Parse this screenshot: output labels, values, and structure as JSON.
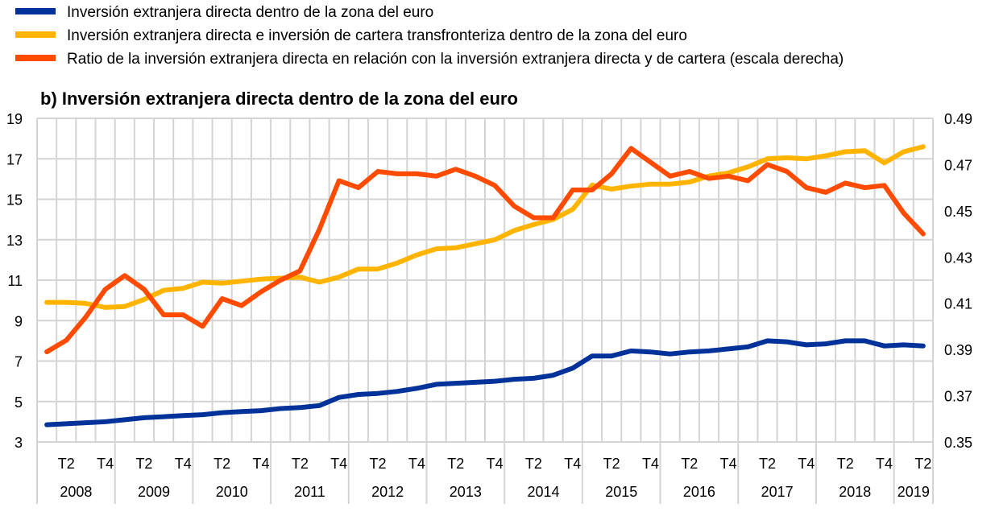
{
  "chart_data": {
    "type": "line",
    "title": "b) Inversión extranjera directa dentro de la zona del euro",
    "legend_position": "top-left",
    "grid": true,
    "y_left": {
      "min": 3,
      "max": 19,
      "ticks": [
        "3",
        "5",
        "7",
        "9",
        "11",
        "13",
        "15",
        "17",
        "19"
      ]
    },
    "y_right": {
      "min": 0.35,
      "max": 0.49,
      "ticks": [
        "0.35",
        "0.37",
        "0.39",
        "0.41",
        "0.43",
        "0.45",
        "0.47",
        "0.49"
      ]
    },
    "quarter_labels": [
      "T2",
      "T4"
    ],
    "years": [
      "2008",
      "2009",
      "2010",
      "2011",
      "2012",
      "2013",
      "2014",
      "2015",
      "2016",
      "2017",
      "2018",
      "2019"
    ],
    "x_start": "2008 T1",
    "x_end": "2019 T2",
    "series": [
      {
        "name": "Inversión extranjera directa dentro de la zona del euro",
        "color": "#003299",
        "axis": "left",
        "values": [
          3.85,
          3.9,
          3.95,
          4.0,
          4.1,
          4.2,
          4.25,
          4.3,
          4.35,
          4.45,
          4.5,
          4.55,
          4.65,
          4.7,
          4.8,
          5.2,
          5.35,
          5.4,
          5.5,
          5.65,
          5.85,
          5.9,
          5.95,
          6.0,
          6.1,
          6.15,
          6.3,
          6.65,
          7.25,
          7.25,
          7.5,
          7.45,
          7.35,
          7.45,
          7.5,
          7.6,
          7.7,
          8.0,
          7.95,
          7.8,
          7.85,
          8.0,
          8.0,
          7.75,
          7.8,
          7.75
        ]
      },
      {
        "name": "Inversión extranjera directa e inversión de cartera transfronteriza dentro de la zona del euro",
        "color": "#FFB400",
        "axis": "left",
        "values": [
          9.9,
          9.9,
          9.85,
          9.65,
          9.7,
          10.05,
          10.5,
          10.6,
          10.9,
          10.85,
          10.95,
          11.05,
          11.1,
          11.15,
          10.9,
          11.15,
          11.55,
          11.55,
          11.85,
          12.25,
          12.55,
          12.6,
          12.8,
          13.0,
          13.45,
          13.75,
          14.0,
          14.5,
          15.7,
          15.5,
          15.65,
          15.75,
          15.75,
          15.85,
          16.15,
          16.3,
          16.6,
          17.0,
          17.05,
          17.0,
          17.15,
          17.35,
          17.4,
          16.8,
          17.35,
          17.6
        ]
      },
      {
        "name": "Ratio de la inversión extranjera directa en relación con la inversión extranjera directa y de cartera (escala derecha)",
        "color": "#FF4B00",
        "axis": "right",
        "values": [
          0.389,
          0.394,
          0.404,
          0.416,
          0.422,
          0.416,
          0.405,
          0.405,
          0.4,
          0.412,
          0.409,
          0.415,
          0.42,
          0.424,
          0.442,
          0.463,
          0.46,
          0.467,
          0.466,
          0.466,
          0.465,
          0.468,
          0.465,
          0.461,
          0.452,
          0.447,
          0.447,
          0.459,
          0.459,
          0.466,
          0.477,
          0.471,
          0.465,
          0.467,
          0.464,
          0.465,
          0.463,
          0.47,
          0.467,
          0.46,
          0.458,
          0.462,
          0.46,
          0.461,
          0.449,
          0.44
        ]
      }
    ]
  }
}
